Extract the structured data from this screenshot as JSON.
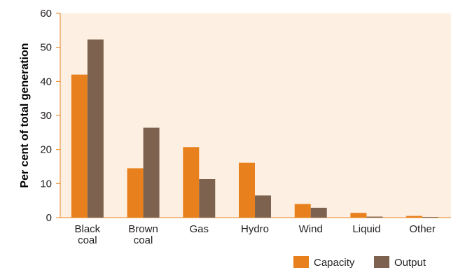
{
  "chart_data": {
    "type": "bar",
    "categories": [
      [
        "Black",
        "coal"
      ],
      [
        "Brown",
        "coal"
      ],
      [
        "Gas"
      ],
      [
        "Hydro"
      ],
      [
        "Wind"
      ],
      [
        "Liquid"
      ],
      [
        "Other"
      ]
    ],
    "series": [
      {
        "name": "Capacity",
        "color": "#e8811d",
        "values": [
          42,
          14.5,
          20.7,
          16.1,
          4,
          1.4,
          0.5
        ]
      },
      {
        "name": "Output",
        "color": "#7e6250",
        "values": [
          52.3,
          26.4,
          11.3,
          6.5,
          2.9,
          0.3,
          0.2
        ]
      }
    ],
    "title": "",
    "xlabel": "",
    "ylabel": "Per cent of total generation",
    "ylim": [
      0,
      60
    ],
    "yticks": [
      0,
      10,
      20,
      30,
      40,
      50,
      60
    ],
    "grid": false,
    "legend": "bottom-right",
    "plot_background": "#fdf0e2",
    "axis_color": "#e8811d"
  }
}
